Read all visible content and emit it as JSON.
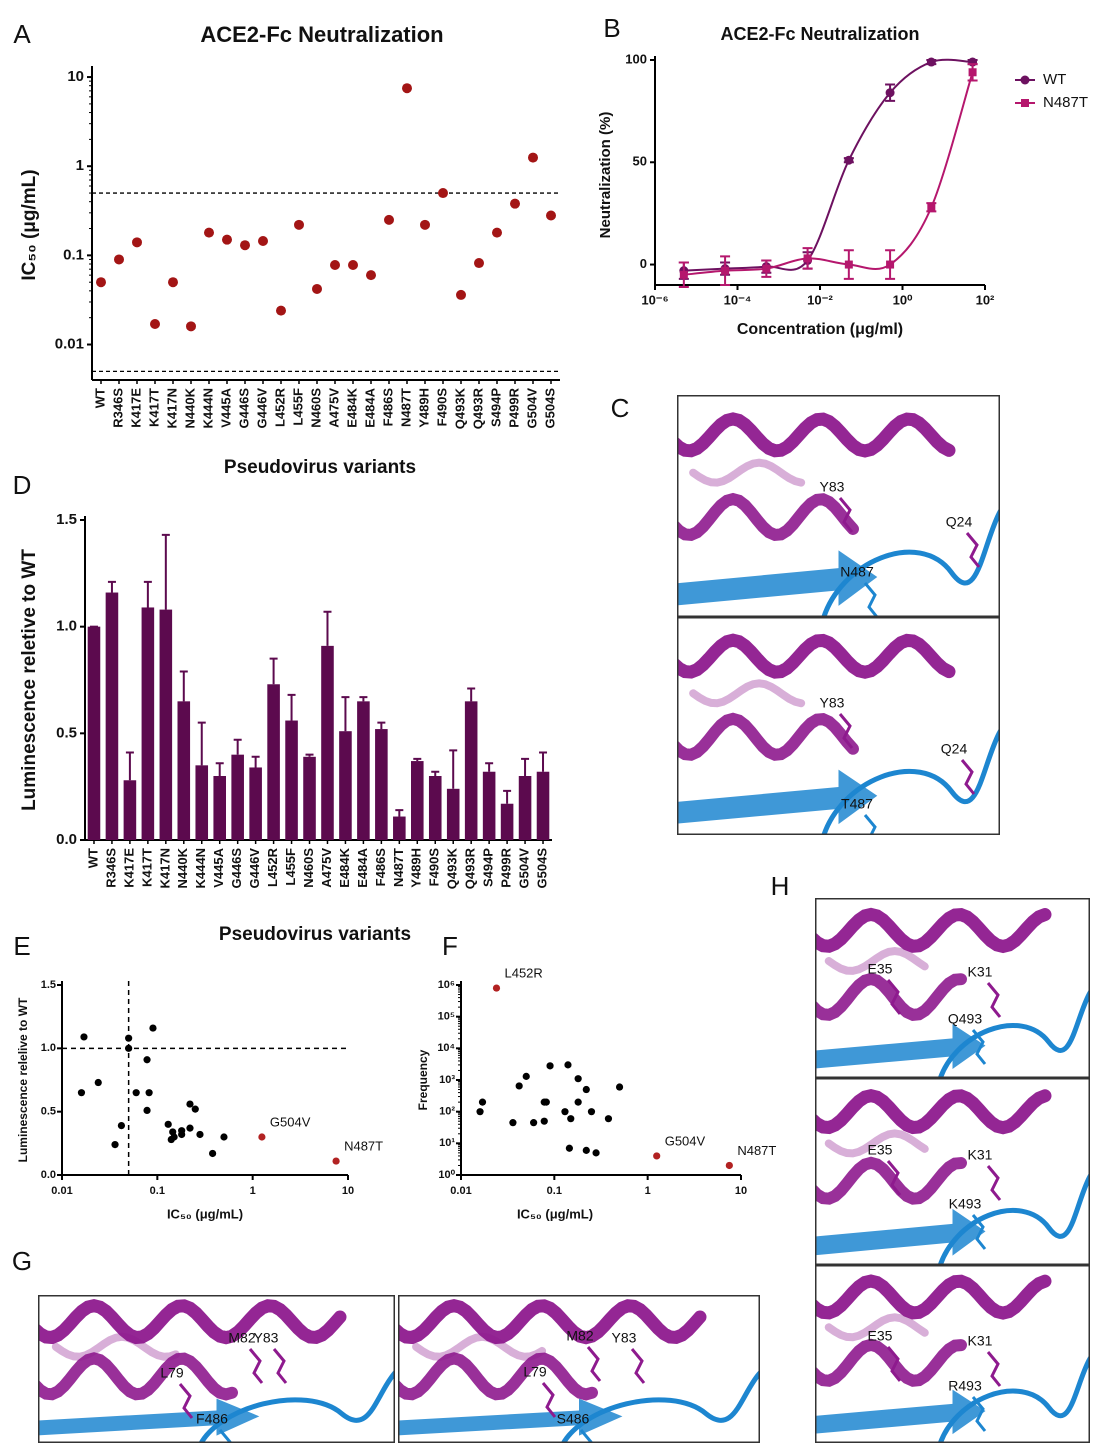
{
  "chart_data": [
    {
      "type": "dot",
      "label": "A",
      "title": "ACE2-Fc Neutralization",
      "y_label": "IC₅₀ (μg/mL)",
      "x_label": "Pseudovirus variants",
      "categories": [
        "WT",
        "R346S",
        "K417E",
        "K417T",
        "K417N",
        "N440K",
        "K444N",
        "V445A",
        "G446S",
        "G446V",
        "L452R",
        "L455F",
        "N460S",
        "A475V",
        "E484K",
        "E484A",
        "F486S",
        "N487T",
        "Y489H",
        "F490S",
        "Q493K",
        "Q493R",
        "S494P",
        "P499R",
        "G504V",
        "G504S"
      ],
      "values": [
        0.05,
        0.09,
        0.14,
        0.017,
        0.05,
        0.016,
        0.18,
        0.15,
        0.13,
        0.145,
        0.024,
        0.22,
        0.042,
        0.078,
        0.078,
        0.06,
        0.25,
        7.5,
        0.22,
        0.5,
        0.036,
        0.082,
        0.18,
        0.38,
        1.25,
        0.28
      ],
      "color": "#a31515",
      "log_y": true,
      "ylim": [
        0.004,
        12
      ],
      "yticks": [
        0.01,
        0.1,
        1,
        10
      ],
      "reference_lines": [
        0.5,
        0.005
      ]
    },
    {
      "type": "line",
      "label": "B",
      "title": "ACE2-Fc Neutralization",
      "x_label": "Concentration (μg/ml)",
      "y_label": "Neutralization (%)",
      "x": [
        5e-06,
        5e-05,
        0.0005,
        0.005,
        0.05,
        0.5,
        5,
        50
      ],
      "series": [
        {
          "name": "WT",
          "color": "#6d1160",
          "marker": "circle",
          "values": [
            -3,
            -2,
            -1,
            2,
            51,
            84,
            99,
            99
          ],
          "errors": [
            4,
            3,
            3,
            4,
            1,
            4,
            1,
            1
          ]
        },
        {
          "name": "N487T",
          "color": "#b5176d",
          "marker": "square",
          "values": [
            -5,
            -3,
            -2,
            3,
            0,
            0,
            28,
            94
          ],
          "errors": [
            6,
            7,
            4,
            5,
            7,
            7,
            2,
            4
          ]
        }
      ],
      "log_x": true,
      "xlim": [
        1e-06,
        100
      ],
      "ylim": [
        -10,
        100
      ],
      "xticks": [
        {
          "value": 1e-06,
          "label": "10⁻⁶"
        },
        {
          "value": 0.0001,
          "label": "10⁻⁴"
        },
        {
          "value": 0.01,
          "label": "10⁻²"
        },
        {
          "value": 1,
          "label": "10⁰"
        },
        {
          "value": 100,
          "label": "10²"
        }
      ],
      "yticks": [
        0,
        50,
        100
      ],
      "legend": "right"
    },
    {
      "type": "bar",
      "label": "D",
      "y_label": "Luminescence reletive to WT",
      "x_label": "Pseudovirus variants",
      "categories": [
        "WT",
        "R346S",
        "K417E",
        "K417T",
        "K417N",
        "N440K",
        "K444N",
        "V445A",
        "G446S",
        "G446V",
        "L452R",
        "L455F",
        "N460S",
        "A475V",
        "E484K",
        "E484A",
        "F486S",
        "N487T",
        "Y489H",
        "F490S",
        "Q493K",
        "Q493R",
        "S494P",
        "P499R",
        "G504V",
        "G504S"
      ],
      "values": [
        1.0,
        1.16,
        0.28,
        1.09,
        1.08,
        0.65,
        0.35,
        0.3,
        0.4,
        0.34,
        0.73,
        0.56,
        0.39,
        0.91,
        0.51,
        0.65,
        0.52,
        0.11,
        0.37,
        0.3,
        0.24,
        0.65,
        0.32,
        0.17,
        0.3,
        0.32
      ],
      "errors": [
        0,
        0.05,
        0.13,
        0.12,
        0.35,
        0.14,
        0.2,
        0.06,
        0.07,
        0.05,
        0.12,
        0.12,
        0.01,
        0.16,
        0.16,
        0.02,
        0.03,
        0.03,
        0.01,
        0.02,
        0.18,
        0.06,
        0.04,
        0.06,
        0.08,
        0.09
      ],
      "color": "#5c0a4e",
      "ylim": [
        0,
        1.5
      ],
      "yticks": [
        {
          "value": 0,
          "label": "0.0"
        },
        0.5,
        {
          "value": 1,
          "label": "1.0"
        },
        1.5
      ]
    },
    {
      "type": "scatter",
      "label": "E",
      "x_label": "IC₅₀ (μg/mL)",
      "y_label": "Luminescence relelive to WT",
      "x": [
        0.05,
        0.09,
        0.14,
        0.017,
        0.05,
        0.016,
        0.18,
        0.15,
        0.13,
        0.145,
        0.024,
        0.22,
        0.042,
        0.078,
        0.078,
        0.06,
        0.25,
        7.5,
        0.22,
        0.5,
        0.036,
        0.082,
        0.18,
        0.38,
        1.25,
        0.28
      ],
      "values": [
        1.0,
        1.16,
        0.28,
        1.09,
        1.08,
        0.65,
        0.35,
        0.3,
        0.4,
        0.34,
        0.73,
        0.56,
        0.39,
        0.91,
        0.51,
        0.65,
        0.52,
        0.11,
        0.37,
        0.3,
        0.24,
        0.65,
        0.32,
        0.17,
        0.3,
        0.32
      ],
      "point_labels": [
        null,
        null,
        null,
        null,
        null,
        null,
        null,
        null,
        null,
        null,
        null,
        null,
        null,
        null,
        null,
        null,
        null,
        "N487T",
        null,
        null,
        null,
        null,
        null,
        null,
        "G504V",
        null
      ],
      "color": "#000000",
      "highlight_color": "#b22222",
      "log_x": true,
      "xlim": [
        0.01,
        10
      ],
      "ylim": [
        0,
        1.5
      ],
      "xticks": [
        0.01,
        0.1,
        1,
        10
      ],
      "yticks": [
        {
          "value": 0,
          "label": "0.0"
        },
        0.5,
        {
          "value": 1,
          "label": "1.0"
        },
        1.5
      ],
      "x_reference": 0.05,
      "y_reference": 1
    },
    {
      "type": "scatter",
      "label": "F",
      "x_label": "IC₅₀ (μg/mL)",
      "y_label": "Frequency",
      "x": [
        0.09,
        0.14,
        0.017,
        0.05,
        0.016,
        0.18,
        0.15,
        0.13,
        0.145,
        0.024,
        0.22,
        0.042,
        0.078,
        0.078,
        0.06,
        0.25,
        7.5,
        0.22,
        0.5,
        0.036,
        0.082,
        0.18,
        0.38,
        1.25,
        0.28
      ],
      "values": [
        2800,
        3000,
        200,
        1300,
        100,
        1100,
        60,
        100,
        7,
        800000,
        500,
        650,
        200,
        50,
        45,
        100,
        2,
        6,
        600,
        45,
        200,
        200,
        60,
        4,
        5
      ],
      "point_labels": [
        null,
        null,
        null,
        null,
        null,
        null,
        null,
        null,
        null,
        "L452R",
        null,
        null,
        null,
        null,
        null,
        null,
        "N487T",
        null,
        null,
        null,
        null,
        null,
        null,
        "G504V",
        null
      ],
      "color": "#000000",
      "highlight_color": "#b22222",
      "log_x": true,
      "log_y": true,
      "xlim": [
        0.01,
        10
      ],
      "ylim": [
        1,
        1000000
      ],
      "xticks": [
        0.01,
        0.1,
        1,
        10
      ],
      "yticks": [
        {
          "value": 1,
          "label": "10⁰"
        },
        {
          "value": 10,
          "label": "10¹"
        },
        {
          "value": 100,
          "label": "10²"
        },
        {
          "value": 1000,
          "label": "10³"
        },
        {
          "value": 10000,
          "label": "10⁴"
        },
        {
          "value": 100000,
          "label": "10⁵"
        },
        {
          "value": 1000000,
          "label": "10⁶"
        }
      ]
    }
  ],
  "structures": [
    {
      "label": "C",
      "views": [
        [
          "Y83",
          "Q24",
          "N487"
        ],
        [
          "Y83",
          "Q24",
          "T487"
        ]
      ]
    },
    {
      "label": "G",
      "views": [
        [
          "M82",
          "Y83",
          "L79",
          "F486"
        ],
        [
          "M82",
          "Y83",
          "L79",
          "S486"
        ]
      ]
    },
    {
      "label": "H",
      "views": [
        [
          "E35",
          "K31",
          "Q493"
        ],
        [
          "E35",
          "K31",
          "K493"
        ],
        [
          "E35",
          "K31",
          "R493"
        ]
      ]
    }
  ]
}
